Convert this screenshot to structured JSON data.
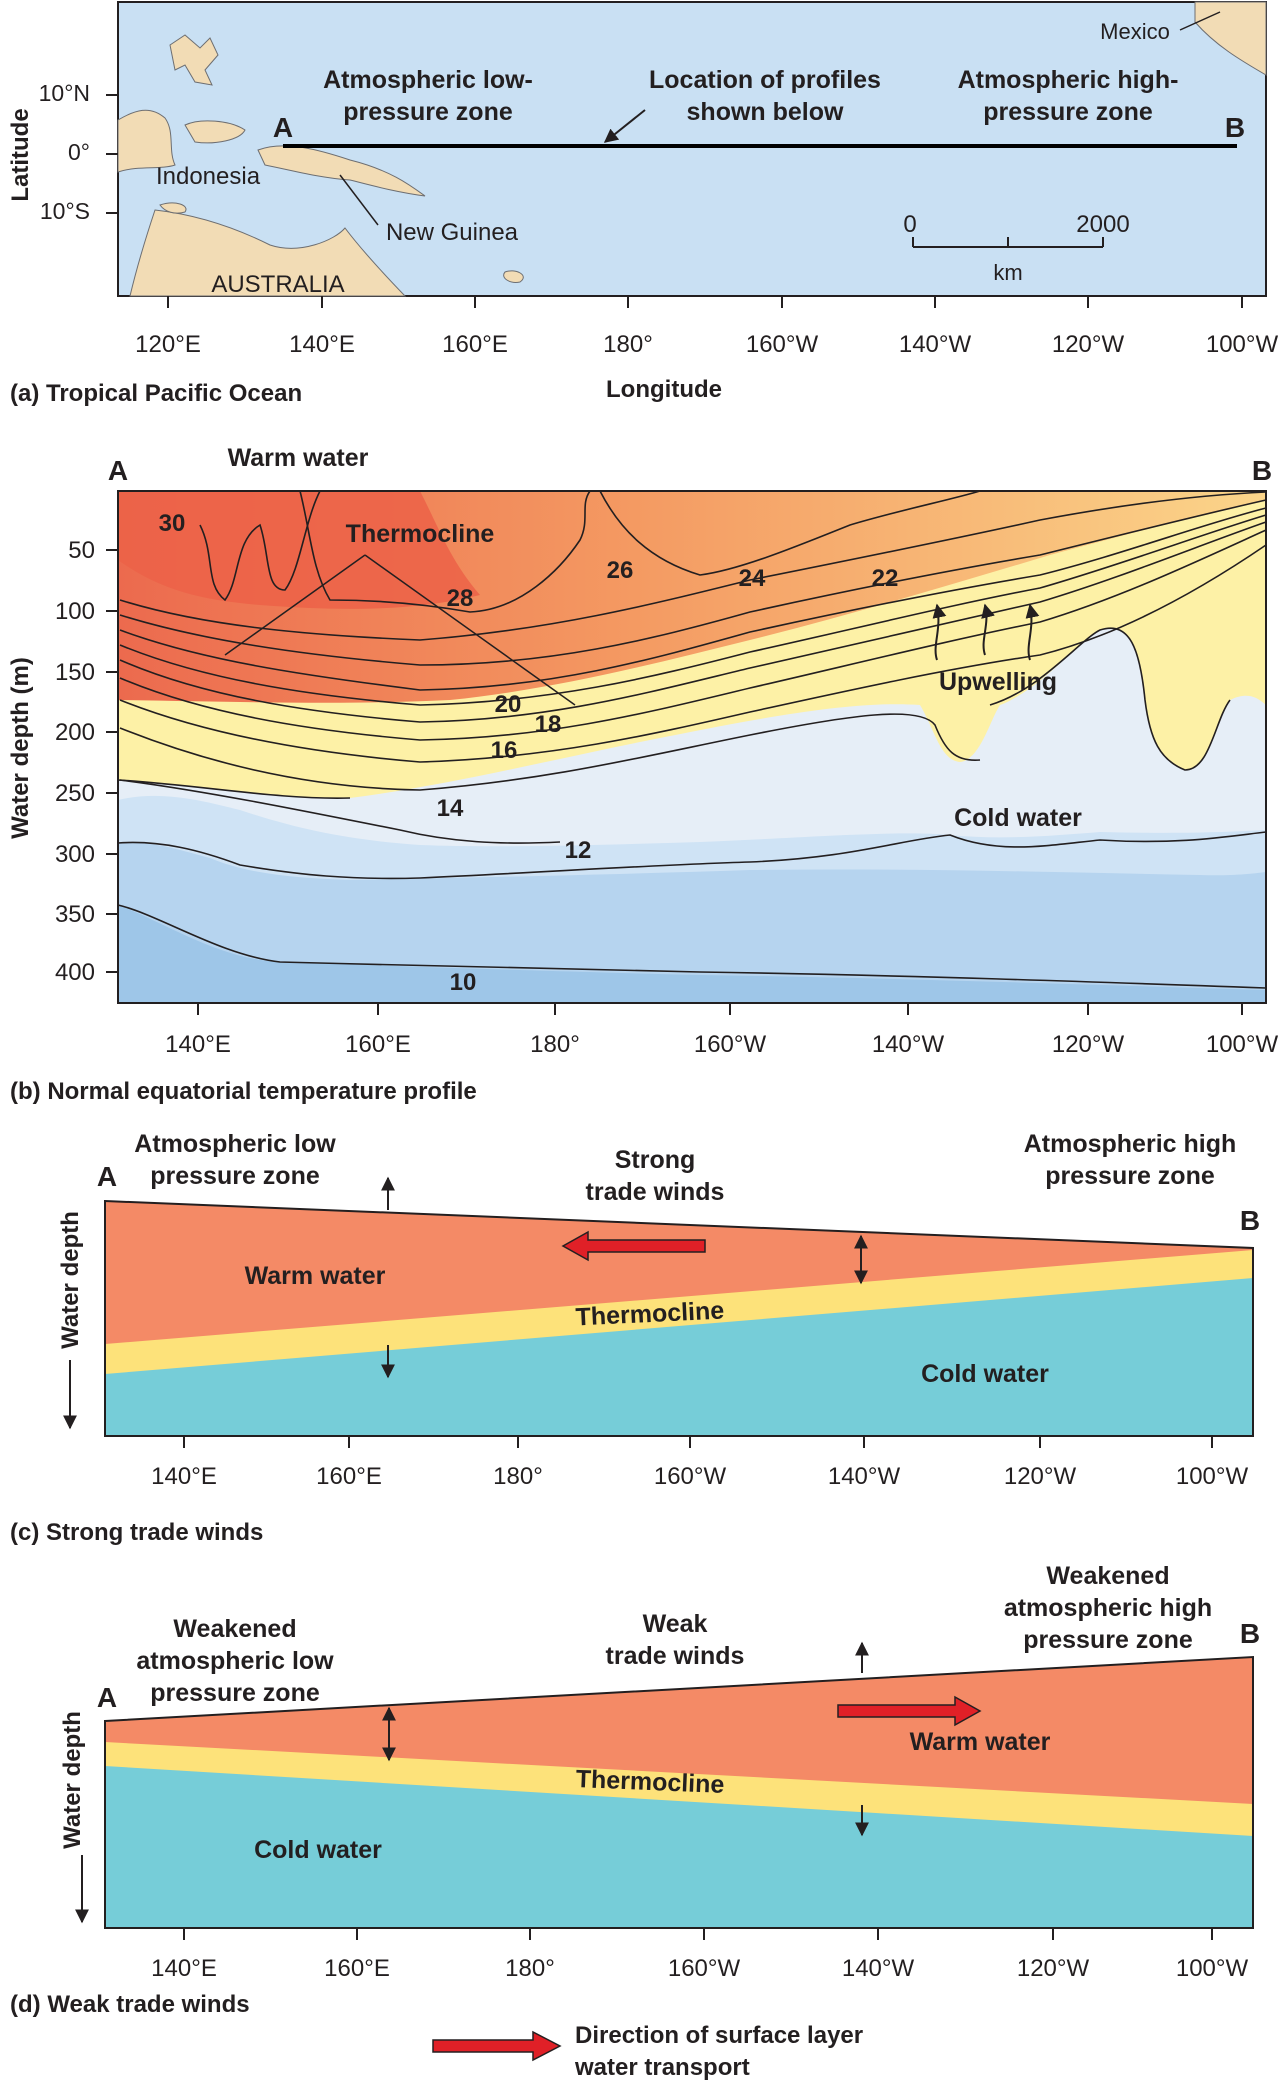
{
  "colors": {
    "ocean_map": "#c9e0f3",
    "land": "#f2dcb5",
    "warm": "#f48a66",
    "thermocline": "#fde27a",
    "cold": "#76cdd8",
    "arrow_red": "#e02027"
  },
  "panel_a": {
    "caption": "(a) Tropical Pacific Ocean",
    "y_axis_title": "Latitude",
    "x_axis_title": "Longitude",
    "lat_ticks": [
      "10°N",
      "0°",
      "10°S"
    ],
    "lon_ticks": [
      "120°E",
      "140°E",
      "160°E",
      "180°",
      "160°W",
      "140°W",
      "120°W",
      "100°W"
    ],
    "label_low_1": "Atmospheric low-",
    "label_low_2": "pressure zone",
    "label_profiles_1": "Location of profiles",
    "label_profiles_2": "shown below",
    "label_high_1": "Atmospheric high-",
    "label_high_2": "pressure zone",
    "point_a": "A",
    "point_b": "B",
    "indonesia": "Indonesia",
    "new_guinea": "New Guinea",
    "australia": "AUSTRALIA",
    "mexico": "Mexico",
    "scale_0": "0",
    "scale_2000": "2000",
    "scale_unit": "km"
  },
  "panel_b": {
    "caption": "(b) Normal equatorial temperature profile",
    "y_axis_title": "Water depth (m)",
    "depth_ticks": [
      "50",
      "100",
      "150",
      "200",
      "250",
      "300",
      "350",
      "400"
    ],
    "lon_ticks": [
      "140°E",
      "160°E",
      "180°",
      "160°W",
      "140°W",
      "120°W",
      "100°W"
    ],
    "point_a": "A",
    "point_b": "B",
    "warm_water": "Warm water",
    "thermocline": "Thermocline",
    "upwelling": "Upwelling",
    "cold_water": "Cold water",
    "isotherms": [
      "30",
      "28",
      "26",
      "24",
      "22",
      "20",
      "18",
      "16",
      "14",
      "12",
      "10"
    ]
  },
  "panel_c": {
    "caption": "(c) Strong trade winds",
    "y_axis_title": "Water depth",
    "lon_ticks": [
      "140°E",
      "160°E",
      "180°",
      "160°W",
      "140°W",
      "120°W",
      "100°W"
    ],
    "label_low_1": "Atmospheric low",
    "label_low_2": "pressure zone",
    "label_winds_1": "Strong",
    "label_winds_2": "trade winds",
    "label_high_1": "Atmospheric high",
    "label_high_2": "pressure zone",
    "point_a": "A",
    "point_b": "B",
    "warm_water": "Warm water",
    "thermocline": "Thermocline",
    "cold_water": "Cold water"
  },
  "panel_d": {
    "caption": "(d) Weak trade winds",
    "y_axis_title": "Water depth",
    "lon_ticks": [
      "140°E",
      "160°E",
      "180°",
      "160°W",
      "140°W",
      "120°W",
      "100°W"
    ],
    "label_low_1": "Weakened",
    "label_low_2": "atmospheric low",
    "label_low_3": "pressure zone",
    "label_winds_1": "Weak",
    "label_winds_2": "trade winds",
    "label_high_1": "Weakened",
    "label_high_2": "atmospheric high",
    "label_high_3": "pressure zone",
    "point_a": "A",
    "point_b": "B",
    "warm_water": "Warm water",
    "thermocline": "Thermocline",
    "cold_water": "Cold water"
  },
  "legend": {
    "text_1": "Direction of surface layer",
    "text_2": "water transport"
  }
}
